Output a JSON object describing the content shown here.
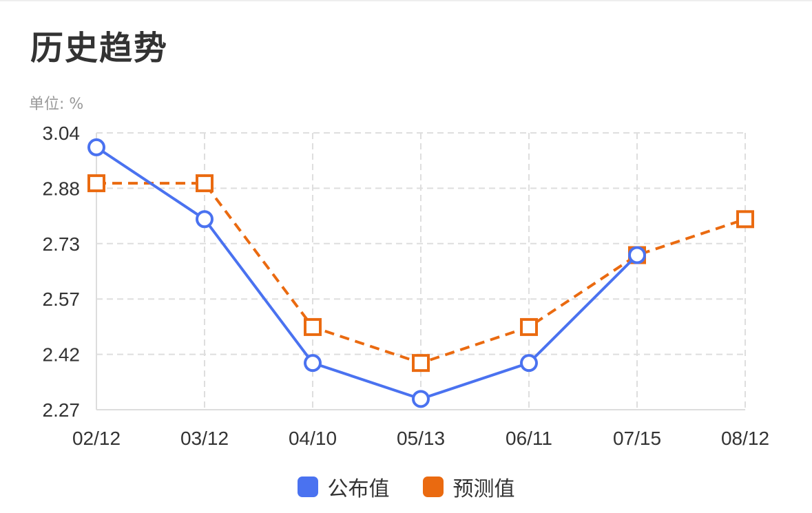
{
  "header": {
    "title": "历史趋势",
    "unit_label": "单位: %"
  },
  "chart_data": {
    "type": "line",
    "title": "历史趋势",
    "ylabel": "单位: %",
    "categories": [
      "02/12",
      "03/12",
      "04/10",
      "05/13",
      "06/11",
      "07/15",
      "08/12"
    ],
    "yticks": [
      "3.04",
      "2.88",
      "2.73",
      "2.57",
      "2.42",
      "2.27"
    ],
    "ylim": [
      2.27,
      3.04
    ],
    "grid": true,
    "legend_position": "bottom-center",
    "series": [
      {
        "name": "公布值",
        "color": "#4a72f0",
        "marker": "circle",
        "line_style": "solid",
        "values": [
          3.0,
          2.8,
          2.4,
          2.3,
          2.4,
          2.7,
          null
        ]
      },
      {
        "name": "预测值",
        "color": "#ea6a10",
        "marker": "square",
        "line_style": "dashed",
        "values": [
          2.9,
          2.9,
          2.5,
          2.4,
          2.5,
          2.7,
          2.8
        ]
      }
    ]
  }
}
